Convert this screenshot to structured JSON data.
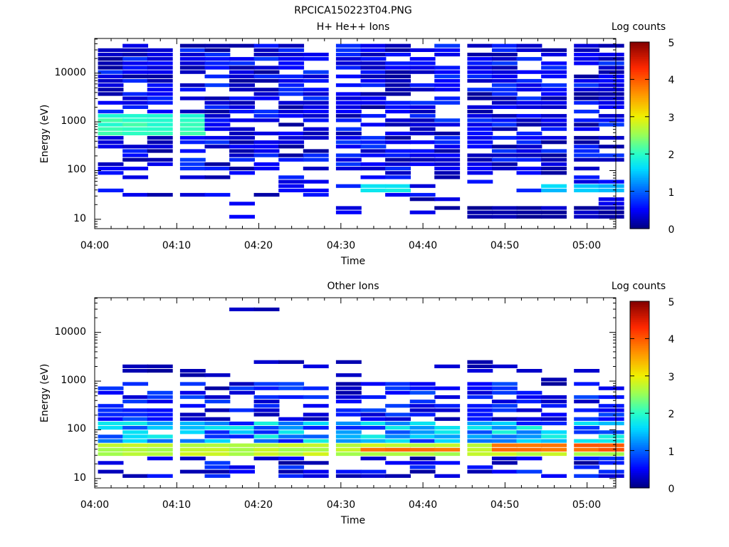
{
  "page_title": "RPCICA150223T04.PNG",
  "chart_data": [
    {
      "type": "heatmap",
      "title": "H+ He++ Ions",
      "xlabel": "Time",
      "ylabel": "Energy (eV)",
      "x_ticks": [
        "04:00",
        "04:10",
        "04:20",
        "04:30",
        "04:40",
        "04:50",
        "05:00"
      ],
      "y_ticks": [
        "10",
        "100",
        "1000",
        "10000"
      ],
      "y_scale": "log",
      "ylim": [
        6,
        45000
      ],
      "xlim": [
        "04:00",
        "05:03"
      ],
      "colorbar": {
        "label": "Log counts",
        "ticks": [
          "0",
          "1",
          "2",
          "3",
          "4",
          "5"
        ],
        "range": [
          0,
          5
        ]
      },
      "time_bins": [
        "04:02",
        "04:05",
        "04:08",
        "04:12",
        "04:15",
        "04:18",
        "04:21",
        "04:24",
        "04:27",
        "04:31",
        "04:34",
        "04:37",
        "04:40",
        "04:43",
        "04:47",
        "04:50",
        "04:53",
        "04:56",
        "05:00",
        "05:03"
      ],
      "notable": [
        {
          "time_range": [
            "04:02",
            "04:12"
          ],
          "energy_eV": [
            500,
            1200
          ],
          "log_counts": 2.0
        },
        {
          "time_range": [
            "04:34",
            "04:37"
          ],
          "energy_eV": [
            30,
            50
          ],
          "log_counts": 1.8
        },
        {
          "time_range": [
            "04:56",
            "05:03"
          ],
          "energy_eV": [
            30,
            50
          ],
          "log_counts": 1.5
        },
        {
          "time_range": [
            "04:47",
            "05:03"
          ],
          "energy_eV": [
            10,
            16
          ],
          "log_counts": 0.2
        }
      ]
    },
    {
      "type": "heatmap",
      "title": "Other Ions",
      "xlabel": "Time",
      "ylabel": "Energy (eV)",
      "x_ticks": [
        "04:00",
        "04:10",
        "04:20",
        "04:30",
        "04:40",
        "04:50",
        "05:00"
      ],
      "y_ticks": [
        "10",
        "100",
        "1000",
        "10000"
      ],
      "y_scale": "log",
      "ylim": [
        6,
        45000
      ],
      "xlim": [
        "04:00",
        "05:03"
      ],
      "colorbar": {
        "label": "Log counts",
        "ticks": [
          "0",
          "1",
          "2",
          "3",
          "4",
          "5"
        ],
        "range": [
          0,
          5
        ]
      },
      "time_bins": [
        "04:02",
        "04:05",
        "04:08",
        "04:12",
        "04:15",
        "04:18",
        "04:21",
        "04:24",
        "04:27",
        "04:31",
        "04:34",
        "04:37",
        "04:40",
        "04:43",
        "04:47",
        "04:50",
        "04:53",
        "04:56",
        "05:00",
        "05:03"
      ],
      "notable": [
        {
          "time_range": [
            "04:02",
            "05:03"
          ],
          "energy_eV": [
            25,
            50
          ],
          "log_counts": 2.7
        },
        {
          "time_range": [
            "04:34",
            "04:37"
          ],
          "energy_eV": [
            30,
            40
          ],
          "log_counts": 3.8
        },
        {
          "time_range": [
            "04:40",
            "04:43"
          ],
          "energy_eV": [
            30,
            40
          ],
          "log_counts": 3.8
        },
        {
          "time_range": [
            "04:50",
            "05:03"
          ],
          "energy_eV": [
            30,
            45
          ],
          "log_counts": 3.9
        },
        {
          "time_range": [
            "04:18",
            "04:21"
          ],
          "energy_eV": [
            25000,
            28000
          ],
          "log_counts": 0.2
        }
      ]
    }
  ]
}
